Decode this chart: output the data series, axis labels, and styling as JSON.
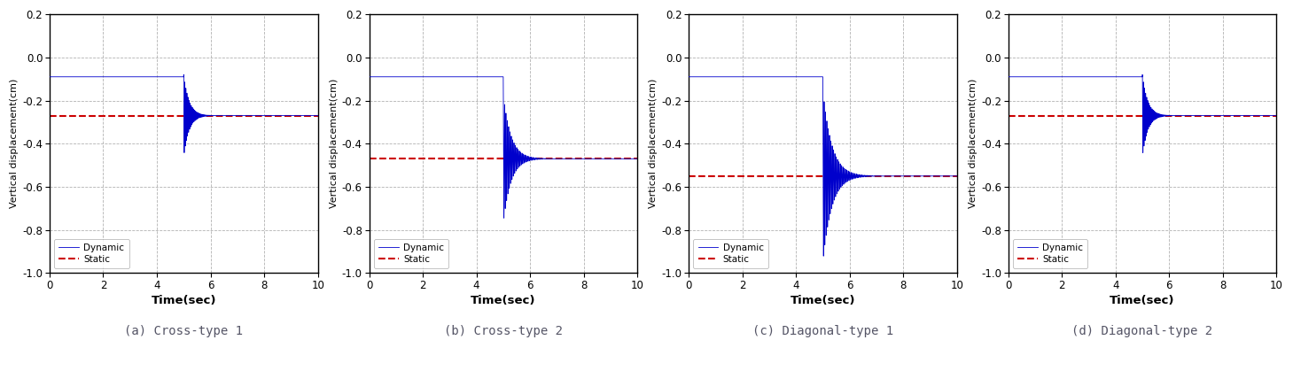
{
  "subplots": [
    {
      "title": "(a) Cross-type 1",
      "static_value": -0.27,
      "initial_value": -0.09,
      "drop_time": 5.0,
      "oscillation_amplitude": 0.19,
      "oscillation_decay": 5.0,
      "oscillation_freq": 25.0
    },
    {
      "title": "(b) Cross-type 2",
      "static_value": -0.47,
      "initial_value": -0.09,
      "drop_time": 5.0,
      "oscillation_amplitude": 0.3,
      "oscillation_decay": 3.5,
      "oscillation_freq": 20.0
    },
    {
      "title": "(c) Diagonal-type 1",
      "static_value": -0.55,
      "initial_value": -0.09,
      "drop_time": 5.0,
      "oscillation_amplitude": 0.4,
      "oscillation_decay": 3.0,
      "oscillation_freq": 20.0
    },
    {
      "title": "(d) Diagonal-type 2",
      "static_value": -0.27,
      "initial_value": -0.09,
      "drop_time": 5.0,
      "oscillation_amplitude": 0.19,
      "oscillation_decay": 5.0,
      "oscillation_freq": 25.0
    }
  ],
  "ylim": [
    -1.0,
    0.2
  ],
  "xlim": [
    0,
    10
  ],
  "yticks": [
    0.2,
    0.0,
    -0.2,
    -0.4,
    -0.6,
    -0.8,
    -1.0
  ],
  "xticks": [
    0,
    2,
    4,
    6,
    8,
    10
  ],
  "xlabel": "Time(sec)",
  "ylabel": "Vertical displacement(cm)",
  "dynamic_color": "#0000cc",
  "static_color": "#cc0000",
  "background_color": "#ffffff",
  "grid_color": "#aaaaaa",
  "figsize": [
    14.59,
    4.19
  ],
  "dpi": 100
}
